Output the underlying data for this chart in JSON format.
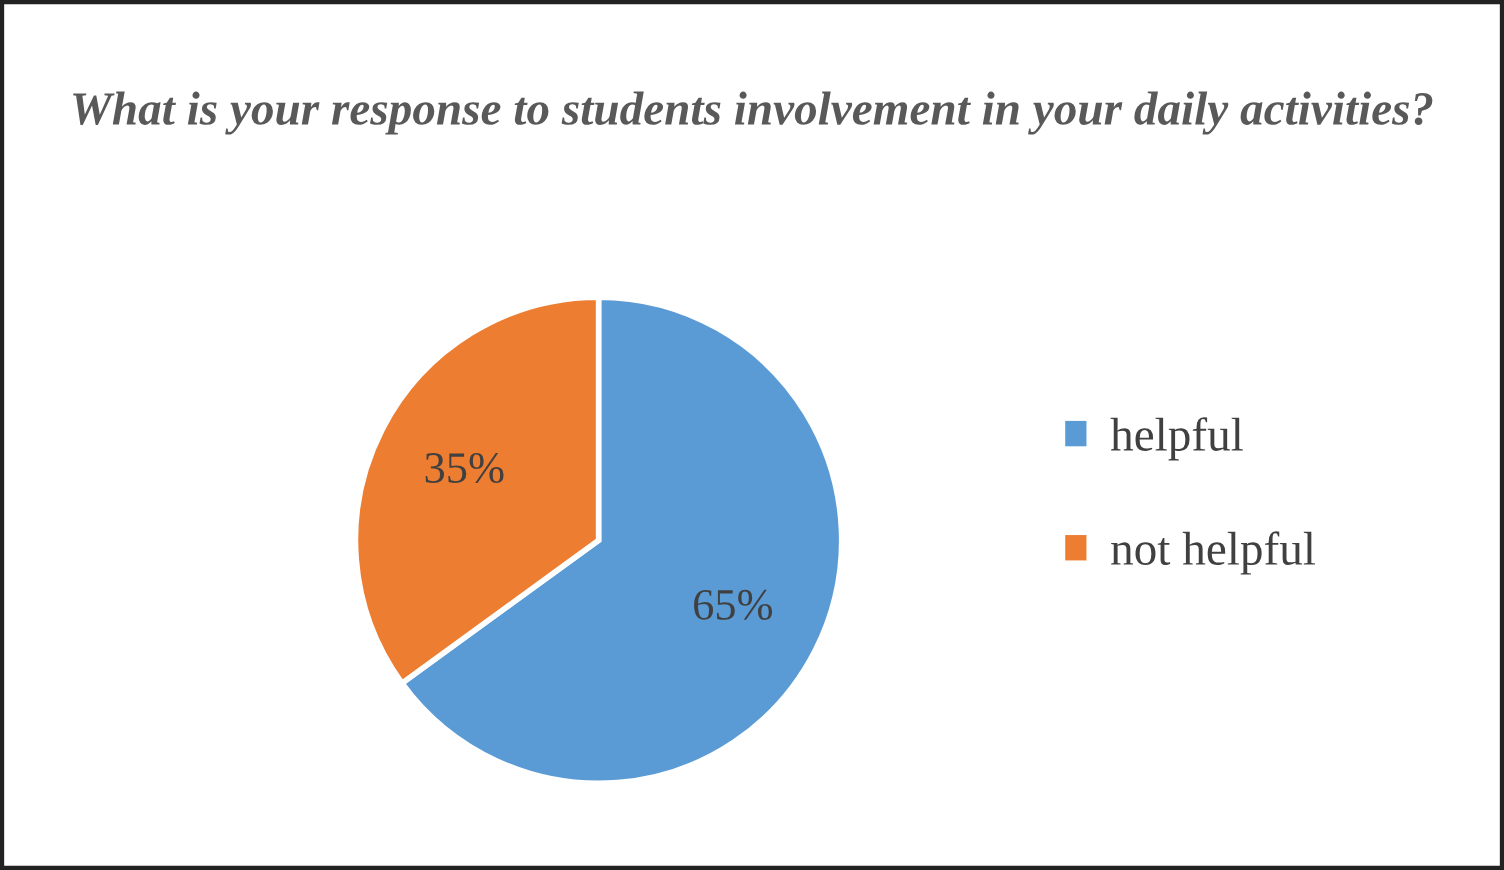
{
  "chart_data": {
    "type": "pie",
    "title": "What is your response to students involvement in your daily activities?",
    "categories": [
      "helpful",
      "not helpful"
    ],
    "values": [
      65,
      35
    ],
    "colors": [
      "#5b9bd5",
      "#ed7d31"
    ],
    "value_labels": [
      "65%",
      "35%"
    ],
    "legend": "right"
  }
}
